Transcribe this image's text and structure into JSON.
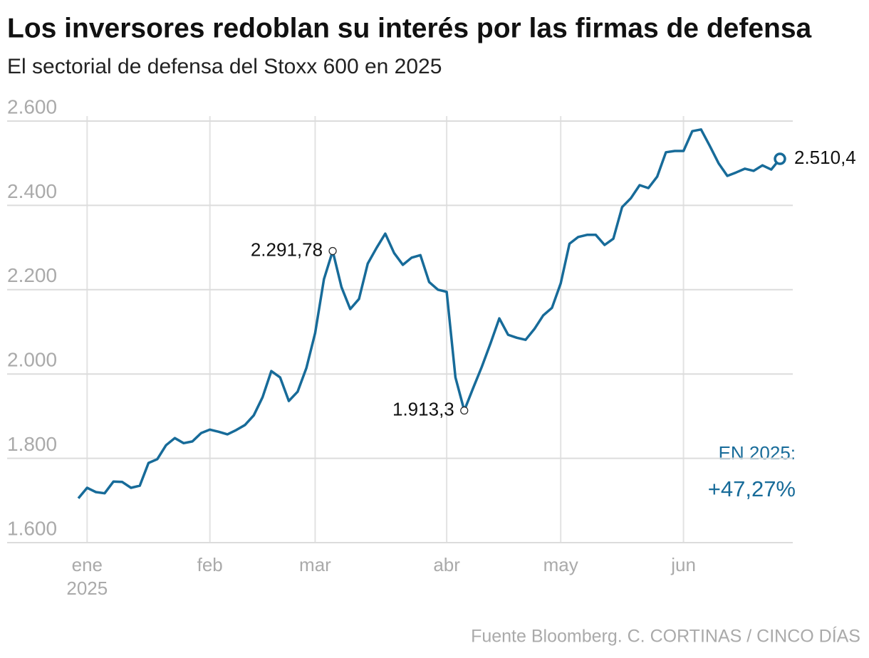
{
  "chart_data": {
    "type": "line",
    "title": "Los inversores redoblan su interés por las firmas de defensa",
    "subtitle": "El sectorial de defensa del Stoxx 600 en 2025",
    "source": "Fuente Bloomberg. C. CORTINAS / CINCO DÍAS",
    "change_label": "EN 2025:",
    "change_value": "+47,27%",
    "year": "2025",
    "categories": [
      null,
      "ene",
      null,
      null,
      null,
      null,
      null,
      null,
      null,
      null,
      null,
      null,
      null,
      null,
      null,
      "feb",
      null,
      null,
      null,
      null,
      null,
      null,
      null,
      null,
      null,
      null,
      null,
      "mar",
      null,
      null,
      null,
      null,
      null,
      null,
      null,
      null,
      null,
      null,
      null,
      null,
      null,
      null,
      "abr",
      null,
      null,
      null,
      null,
      null,
      null,
      null,
      null,
      null,
      null,
      null,
      null,
      "may",
      null,
      null,
      null,
      null,
      null,
      null,
      null,
      null,
      null,
      null,
      null,
      null,
      null,
      "jun",
      null,
      null,
      null,
      null,
      null,
      null,
      null,
      null,
      null,
      null,
      null
    ],
    "series": [
      {
        "name": "Stoxx 600 defensa",
        "color": "#176b99",
        "values": [
          1705,
          1730,
          1720,
          1717,
          1745,
          1744,
          1730,
          1735,
          1789,
          1798,
          1831,
          1848,
          1836,
          1840,
          1860,
          1868,
          1863,
          1857,
          1867,
          1879,
          1902,
          1945,
          2007,
          1992,
          1936,
          1958,
          2014,
          2097,
          2225,
          2291.78,
          2206,
          2154,
          2178,
          2262,
          2299,
          2333,
          2287,
          2259,
          2276,
          2282,
          2218,
          2200,
          2195,
          1992,
          1913.3,
          1966,
          2017,
          2073,
          2132,
          2093,
          2086,
          2081,
          2107,
          2139,
          2157,
          2215,
          2309,
          2325,
          2330,
          2330,
          2306,
          2321,
          2396,
          2417,
          2448,
          2441,
          2468,
          2526,
          2529,
          2529,
          2576,
          2580,
          2541,
          2500,
          2470,
          2478,
          2487,
          2482,
          2495,
          2485,
          2510.4
        ],
        "value_labels": [
          null,
          null,
          null,
          null,
          null,
          null,
          null,
          null,
          null,
          null,
          null,
          null,
          null,
          null,
          null,
          null,
          null,
          null,
          null,
          null,
          null,
          null,
          null,
          null,
          null,
          null,
          null,
          null,
          null,
          "2.291,78",
          null,
          null,
          null,
          null,
          null,
          null,
          null,
          null,
          null,
          null,
          null,
          null,
          null,
          null,
          "1.913,3",
          null,
          null,
          null,
          null,
          null,
          null,
          null,
          null,
          null,
          null,
          null,
          null,
          null,
          null,
          null,
          null,
          null,
          null,
          null,
          null,
          null,
          null,
          null,
          null,
          null,
          null,
          null,
          null,
          null,
          null,
          null,
          null,
          null,
          null,
          null,
          "2.510,4"
        ]
      }
    ],
    "ylim": [
      1600,
      2600
    ],
    "yticks": [
      {
        "value": 1600,
        "label": "1.600"
      },
      {
        "value": 1800,
        "label": "1.800"
      },
      {
        "value": 2000,
        "label": "2.000"
      },
      {
        "value": 2200,
        "label": "2.200"
      },
      {
        "value": 2400,
        "label": "2.400"
      },
      {
        "value": 2600,
        "label": "2.600"
      }
    ],
    "grid": true
  }
}
